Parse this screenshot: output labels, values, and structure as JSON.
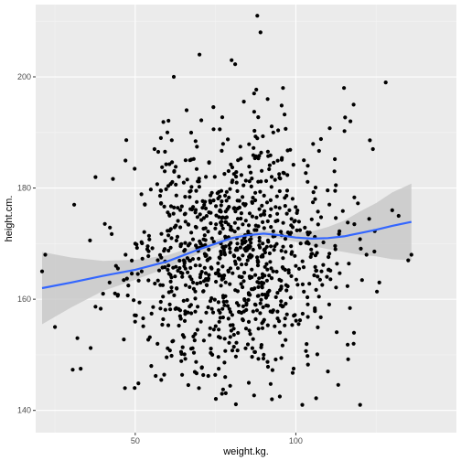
{
  "chart_data": {
    "type": "scatter",
    "title": "",
    "xlabel": "weight.kg.",
    "ylabel": "height.cm.",
    "xlim": [
      19,
      150
    ],
    "ylim": [
      136,
      213
    ],
    "x_ticks": [
      50,
      100
    ],
    "x_tick_labels": [
      "50",
      "100"
    ],
    "y_ticks": [
      140,
      160,
      180,
      200
    ],
    "y_tick_labels": [
      "140",
      "160",
      "180",
      "200"
    ],
    "grid": true,
    "legend": "none",
    "colors": {
      "panel_background": "#ebebeb",
      "grid_major": "#ffffff",
      "grid_minor": "#f4f4f4",
      "points": "#000000",
      "smooth_line": "#3366ff",
      "confidence_band": "#c4c4c4"
    },
    "points_highlight": [
      [
        21,
        165
      ],
      [
        22,
        168
      ],
      [
        25,
        155
      ],
      [
        32,
        153
      ],
      [
        31,
        177
      ],
      [
        33,
        147.5
      ],
      [
        40,
        161
      ],
      [
        42,
        163
      ],
      [
        44,
        166
      ],
      [
        47,
        168
      ],
      [
        50,
        170
      ],
      [
        52,
        165
      ],
      [
        53,
        177
      ],
      [
        55,
        148
      ],
      [
        56,
        187
      ],
      [
        58,
        189
      ],
      [
        60,
        190
      ],
      [
        62,
        200
      ],
      [
        64,
        158
      ],
      [
        66,
        194
      ],
      [
        67,
        170
      ],
      [
        68,
        163
      ],
      [
        70,
        204
      ],
      [
        72,
        182
      ],
      [
        74,
        150
      ],
      [
        76,
        158
      ],
      [
        77,
        143
      ],
      [
        78,
        146
      ],
      [
        80,
        203
      ],
      [
        82,
        185
      ],
      [
        84,
        160
      ],
      [
        85,
        167
      ],
      [
        87,
        197
      ],
      [
        88,
        211
      ],
      [
        89,
        208
      ],
      [
        90,
        150
      ],
      [
        92,
        175
      ],
      [
        93,
        190
      ],
      [
        95,
        142.5
      ],
      [
        96,
        198
      ],
      [
        98,
        176
      ],
      [
        100,
        166
      ],
      [
        102,
        141
      ],
      [
        104,
        170
      ],
      [
        106,
        178
      ],
      [
        108,
        165
      ],
      [
        110,
        147
      ],
      [
        112,
        183
      ],
      [
        115,
        198
      ],
      [
        117,
        192
      ],
      [
        118,
        195
      ],
      [
        120,
        141
      ],
      [
        122,
        168
      ],
      [
        124,
        187
      ],
      [
        126,
        163
      ],
      [
        128,
        199
      ],
      [
        130,
        176
      ],
      [
        132,
        175
      ],
      [
        135,
        167
      ],
      [
        136,
        168
      ],
      [
        118,
        152
      ]
    ],
    "n_points": 1020,
    "random_seed": 7,
    "smooth": {
      "method": "loess",
      "x": [
        21,
        30,
        40,
        50,
        60,
        70,
        75,
        80,
        85,
        90,
        95,
        100,
        105,
        110,
        115,
        120,
        125,
        130,
        136
      ],
      "y": [
        162.0,
        163.0,
        164.2,
        165.3,
        166.8,
        169.0,
        170.0,
        171.0,
        171.5,
        171.8,
        171.5,
        171.1,
        170.9,
        171.0,
        171.3,
        171.9,
        172.5,
        173.2,
        173.9
      ],
      "lower": [
        155.5,
        158.5,
        161.5,
        163.5,
        165.7,
        168.2,
        169.3,
        170.4,
        170.9,
        171.2,
        170.9,
        170.3,
        169.6,
        169.0,
        168.5,
        168.0,
        167.7,
        167.2,
        167.0
      ],
      "upper": [
        168.5,
        167.5,
        166.9,
        167.1,
        167.9,
        169.8,
        170.7,
        171.6,
        172.1,
        172.4,
        172.1,
        171.9,
        172.2,
        173.0,
        174.1,
        175.8,
        177.3,
        179.2,
        180.8
      ]
    }
  }
}
